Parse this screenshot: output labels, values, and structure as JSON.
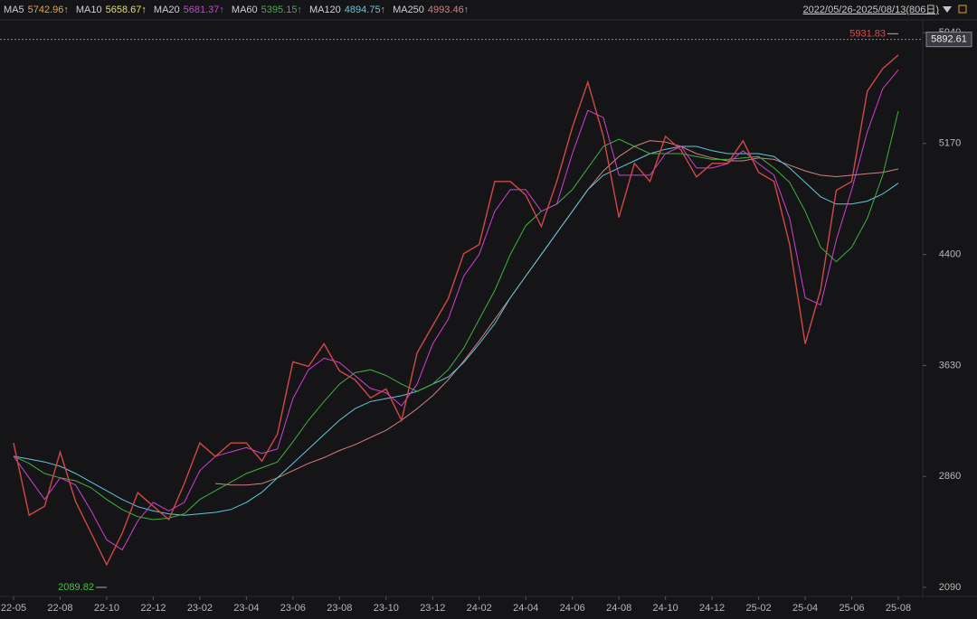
{
  "chart_data": {
    "type": "line",
    "date_range": "2022/05/26-2025/08/13(806日)",
    "categories": [
      "22-05",
      null,
      null,
      "22-08",
      null,
      null,
      "22-10",
      null,
      null,
      "22-12",
      null,
      null,
      "23-02",
      null,
      null,
      "23-04",
      null,
      null,
      "23-06",
      null,
      null,
      "23-08",
      null,
      null,
      "23-10",
      null,
      null,
      "23-12",
      null,
      null,
      "24-02",
      null,
      null,
      "24-04",
      null,
      null,
      "24-06",
      null,
      null,
      "24-08",
      null,
      null,
      "24-10",
      null,
      null,
      "24-12",
      null,
      null,
      "25-02",
      null,
      null,
      "25-04",
      null,
      null,
      "25-06",
      null,
      null,
      "25-08"
    ],
    "close": {
      "color": "#d04848",
      "values": [
        3092,
        2591,
        2653,
        3029,
        2685,
        2466,
        2247,
        2466,
        2747,
        2653,
        2560,
        2810,
        3092,
        2998,
        3092,
        3092,
        2966,
        3154,
        3655,
        3624,
        3780,
        3592,
        3530,
        3405,
        3467,
        3248,
        3718,
        3906,
        4093,
        4406,
        4469,
        4907,
        4907,
        4813,
        4594,
        4907,
        5283,
        5596,
        5220,
        4657,
        5032,
        4907,
        5220,
        5126,
        4938,
        5032,
        5032,
        5189,
        4970,
        4907,
        4469,
        3780,
        4156,
        4845,
        4907,
        5533,
        5690,
        5784
      ]
    },
    "indicators": [
      {
        "name": "MA5",
        "color": "#f0a030",
        "last": {
          "value": 5742.96,
          "label": "5742.96↑"
        }
      },
      {
        "name": "MA10",
        "color": "#e8e040",
        "last": {
          "value": 5658.67,
          "label": "5658.67↑"
        }
      }
    ],
    "series": [
      {
        "name": "MA20",
        "color": "#d040d0",
        "last": {
          "value": 5681.37,
          "label": "5681.37↑"
        },
        "values": [
          3000,
          2850,
          2700,
          2850,
          2800,
          2620,
          2420,
          2350,
          2550,
          2680,
          2620,
          2680,
          2900,
          3000,
          3030,
          3060,
          3020,
          3050,
          3400,
          3600,
          3680,
          3650,
          3560,
          3470,
          3440,
          3350,
          3500,
          3780,
          3950,
          4250,
          4400,
          4700,
          4850,
          4850,
          4700,
          4750,
          5100,
          5400,
          5350,
          4950,
          4950,
          4950,
          5100,
          5150,
          5000,
          5000,
          5030,
          5120,
          5030,
          4950,
          4650,
          4100,
          4050,
          4500,
          4850,
          5250,
          5550,
          5681.37
        ]
      },
      {
        "name": "MA60",
        "color": "#40b040",
        "last": {
          "value": 5395.15,
          "label": "5395.15↑"
        },
        "values": [
          3000,
          2950,
          2880,
          2850,
          2830,
          2780,
          2700,
          2630,
          2580,
          2560,
          2570,
          2600,
          2700,
          2760,
          2820,
          2880,
          2920,
          2960,
          3100,
          3250,
          3380,
          3500,
          3580,
          3600,
          3560,
          3500,
          3450,
          3500,
          3600,
          3750,
          3950,
          4150,
          4400,
          4600,
          4700,
          4750,
          4850,
          5000,
          5150,
          5200,
          5150,
          5100,
          5100,
          5100,
          5080,
          5060,
          5060,
          5070,
          5080,
          5000,
          4900,
          4700,
          4450,
          4350,
          4450,
          4650,
          4950,
          5395.15
        ]
      },
      {
        "name": "MA120",
        "color": "#60c8d8",
        "last": {
          "value": 4894.75,
          "label": "4894.75↑"
        },
        "values": [
          3000,
          2980,
          2960,
          2930,
          2880,
          2820,
          2760,
          2700,
          2650,
          2620,
          2600,
          2590,
          2600,
          2610,
          2630,
          2680,
          2750,
          2850,
          2950,
          3050,
          3150,
          3250,
          3330,
          3380,
          3400,
          3420,
          3450,
          3500,
          3550,
          3650,
          3780,
          3920,
          4100,
          4250,
          4400,
          4550,
          4700,
          4850,
          4950,
          5000,
          5050,
          5100,
          5130,
          5150,
          5150,
          5120,
          5100,
          5100,
          5100,
          5080,
          5000,
          4900,
          4800,
          4750,
          4750,
          4770,
          4820,
          4894.75
        ]
      },
      {
        "name": "MA250",
        "color": "#d08080",
        "last": {
          "value": 4993.46,
          "label": "4993.46↑"
        },
        "values": [
          null,
          null,
          null,
          null,
          null,
          null,
          null,
          null,
          null,
          null,
          null,
          null,
          null,
          2810,
          2800,
          2800,
          2810,
          2850,
          2900,
          2950,
          2990,
          3040,
          3080,
          3130,
          3180,
          3250,
          3330,
          3420,
          3530,
          3660,
          3800,
          3950,
          4100,
          4250,
          4400,
          4550,
          4700,
          4850,
          4980,
          5080,
          5150,
          5190,
          5180,
          5150,
          5100,
          5070,
          5050,
          5050,
          5070,
          5060,
          5020,
          4980,
          4950,
          4940,
          4950,
          4960,
          4970,
          4993.46
        ]
      }
    ],
    "high": 5931.83,
    "low": 2089.82,
    "last_price": 5892.61,
    "ylim": [
      2027,
      5978
    ],
    "yticks": [
      2090,
      2860,
      3630,
      4400,
      5170,
      5940
    ]
  }
}
